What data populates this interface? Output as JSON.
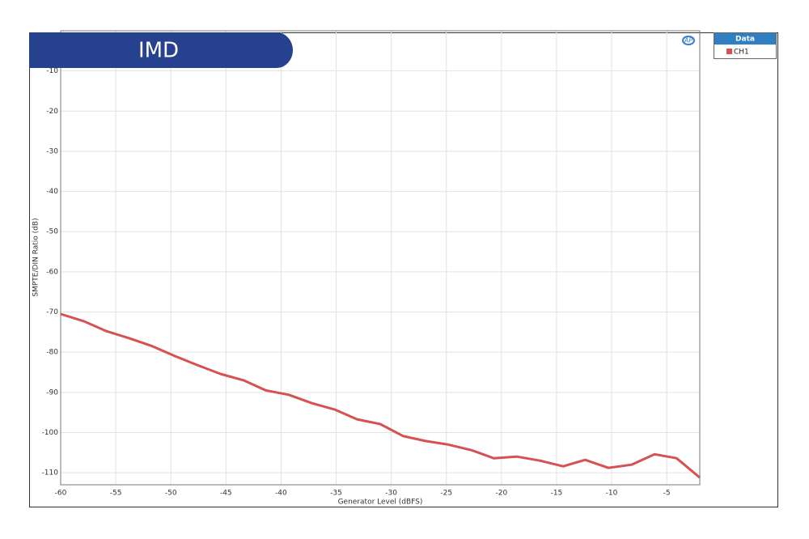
{
  "banner": "IMD",
  "legend": {
    "header": "Data"
  },
  "chart_data": {
    "type": "line",
    "x_label": "Generator Level (dBFS)",
    "y_label": "SMPTE/DIN Ratio (dB)",
    "x": [
      -60,
      -57.9,
      -55.9,
      -53.8,
      -51.7,
      -49.6,
      -47.6,
      -45.5,
      -43.4,
      -41.4,
      -39.3,
      -37.2,
      -35.1,
      -33.1,
      -31,
      -28.9,
      -26.9,
      -24.8,
      -22.7,
      -20.7,
      -18.6,
      -16.5,
      -14.4,
      -12.4,
      -10.3,
      -8.2,
      -6.1,
      -4.1,
      -2
    ],
    "series": [
      {
        "name": "CH1",
        "color": "#d65151",
        "values": [
          -70.5,
          -72.3,
          -74.7,
          -76.5,
          -78.5,
          -81,
          -83.2,
          -85.4,
          -87,
          -89.5,
          -90.6,
          -92.7,
          -94.3,
          -96.7,
          -97.9,
          -100.9,
          -102.1,
          -103,
          -104.4,
          -106.4,
          -106,
          -107,
          -108.4,
          -106.8,
          -108.8,
          -108,
          -105.4,
          -106.4,
          -111.2
        ]
      }
    ],
    "xlim": [
      -60,
      -2
    ],
    "ylim": [
      -113,
      0
    ],
    "xticks": [
      -60,
      -55,
      -50,
      -45,
      -40,
      -35,
      -30,
      -25,
      -20,
      -15,
      -10,
      -5
    ],
    "yticks": [
      -10,
      -20,
      -30,
      -40,
      -50,
      -60,
      -70,
      -80,
      -90,
      -100,
      -110
    ],
    "grid": true
  }
}
